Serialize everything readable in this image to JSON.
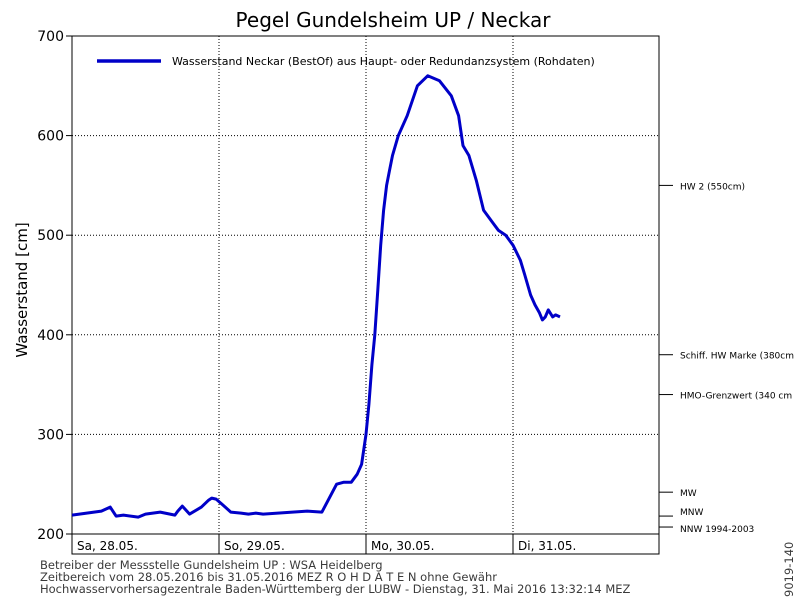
{
  "chart_data": {
    "type": "line",
    "title": "Pegel Gundelsheim UP / Neckar",
    "ylabel": "Wasserstand [cm]",
    "ylim": [
      200,
      700
    ],
    "yticks": [
      200,
      300,
      400,
      500,
      600,
      700
    ],
    "x_day_labels": [
      "Sa, 28.05.",
      "So, 29.05.",
      "Mo, 30.05.",
      "Di, 31.05."
    ],
    "x_range_days": [
      0,
      4
    ],
    "grid": true,
    "legend_position": "top-left",
    "series": [
      {
        "name": "Wasserstand Neckar (BestOf) aus Haupt- oder Redundanzsystem (Rohdaten)",
        "color": "#0000c8",
        "x_days": [
          0,
          0.1,
          0.2,
          0.26,
          0.3,
          0.35,
          0.45,
          0.5,
          0.6,
          0.7,
          0.72,
          0.75,
          0.8,
          0.88,
          0.93,
          0.95,
          0.98,
          1.02,
          1.08,
          1.15,
          1.2,
          1.25,
          1.3,
          1.4,
          1.5,
          1.6,
          1.7,
          1.8,
          1.85,
          1.9,
          1.94,
          1.97,
          2.0,
          2.02,
          2.04,
          2.06,
          2.08,
          2.1,
          2.12,
          2.14,
          2.16,
          2.18,
          2.22,
          2.28,
          2.35,
          2.42,
          2.5,
          2.58,
          2.63,
          2.66,
          2.7,
          2.75,
          2.8,
          2.86,
          2.9,
          2.95,
          3.0,
          3.05,
          3.08,
          3.12,
          3.15,
          3.18,
          3.2,
          3.22,
          3.24,
          3.27,
          3.29,
          3.32
        ],
        "values": [
          219,
          221,
          223,
          227,
          218,
          219,
          217,
          220,
          222,
          219,
          223,
          228,
          220,
          227,
          234,
          236,
          235,
          230,
          222,
          221,
          220,
          221,
          220,
          221,
          222,
          223,
          222,
          250,
          252,
          252,
          260,
          270,
          300,
          330,
          370,
          400,
          445,
          490,
          525,
          550,
          565,
          580,
          600,
          620,
          650,
          660,
          655,
          640,
          620,
          590,
          580,
          555,
          525,
          513,
          505,
          500,
          490,
          475,
          460,
          440,
          430,
          422,
          415,
          418,
          425,
          418,
          420,
          418
        ]
      }
    ],
    "reference_lines": [
      {
        "label": "HW 2 (550cm)",
        "value": 550
      },
      {
        "label": "Schiff. HW Marke (380cm",
        "value": 380
      },
      {
        "label": "HMO-Grenzwert (340 cm",
        "value": 340
      },
      {
        "label": "MW",
        "value": 242
      },
      {
        "label": "MNW",
        "value": 218
      },
      {
        "label": "NNW 1994-2003",
        "value": 207
      }
    ]
  },
  "footer": {
    "line1": "Betreiber der Messstelle Gundelsheim UP : WSA Heidelberg",
    "line2": "Zeitbereich vom 28.05.2016 bis 31.05.2016    MEZ    R O H D A T E N ohne Gewähr",
    "line3": "Hochwasservorhersagezentrale Baden-Württemberg der LUBW - Dienstag, 31. Mai 2016 13:32:14 MEZ",
    "side_code": "9019-140"
  }
}
